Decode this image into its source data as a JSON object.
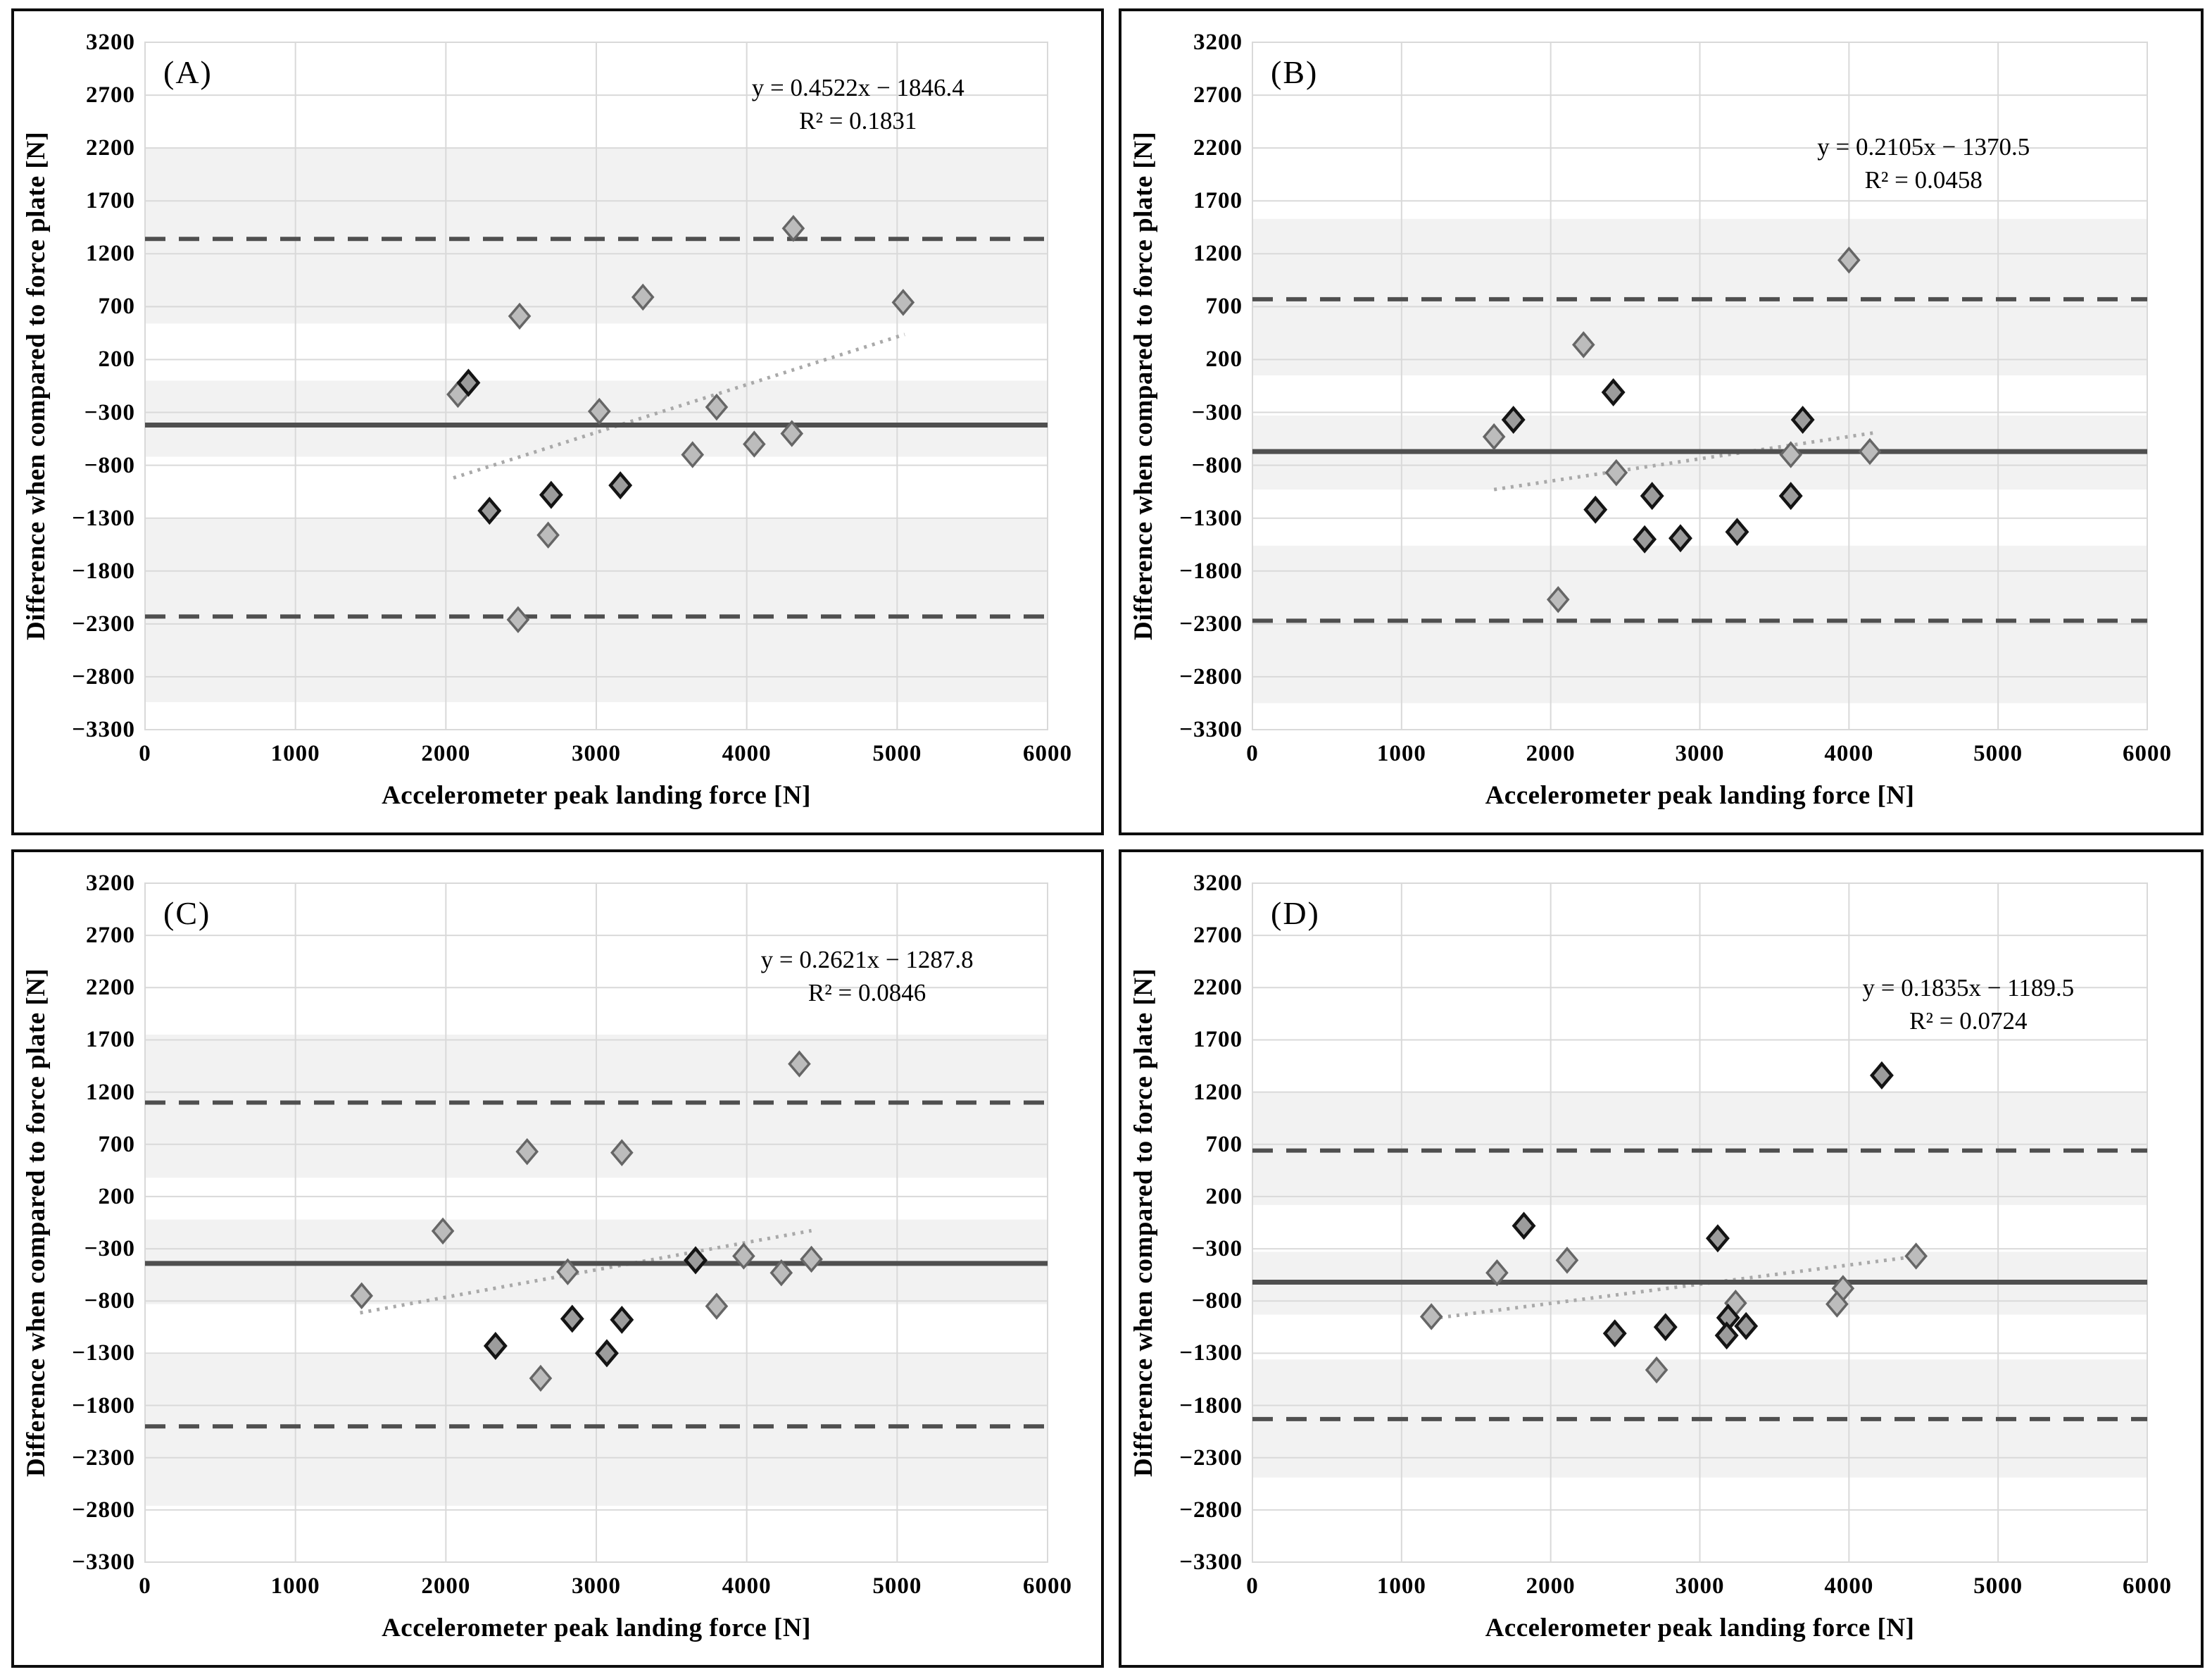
{
  "figure": {
    "description": "Four Bland-Altman style scatter plots comparing accelerometer peak landing force to force plate",
    "panel_labels": [
      "(A)",
      "(B)",
      "(C)",
      "(D)"
    ]
  },
  "axes": {
    "x_title": "Accelerometer peak landing force [N]",
    "y_title": "Difference when compared to force plate [N]",
    "x_range": [
      0,
      6000
    ],
    "y_range": [
      -3300,
      3200
    ],
    "grid": true,
    "x_ticks": [
      {
        "v": 0,
        "label": "0"
      },
      {
        "v": 1000,
        "label": "1000"
      },
      {
        "v": 2000,
        "label": "2000"
      },
      {
        "v": 3000,
        "label": "3000"
      },
      {
        "v": 4000,
        "label": "4000"
      },
      {
        "v": 5000,
        "label": "5000"
      },
      {
        "v": 6000,
        "label": "6000"
      }
    ],
    "y_ticks": [
      {
        "v": 3200,
        "label": "3200"
      },
      {
        "v": 2700,
        "label": "2700"
      },
      {
        "v": 2200,
        "label": "2200"
      },
      {
        "v": 1700,
        "label": "1700"
      },
      {
        "v": 1200,
        "label": "1200"
      },
      {
        "v": 700,
        "label": "700"
      },
      {
        "v": 200,
        "label": "200"
      },
      {
        "v": -300,
        "label": "−300"
      },
      {
        "v": -800,
        "label": "−800"
      },
      {
        "v": -1300,
        "label": "−1300"
      },
      {
        "v": -1800,
        "label": "−1800"
      },
      {
        "v": -2300,
        "label": "−2300"
      },
      {
        "v": -2800,
        "label": "−2800"
      },
      {
        "v": -3300,
        "label": "−3300"
      }
    ]
  },
  "colors": {
    "band": "#f2f2f2",
    "grid": "#d9d9d9",
    "ref_line": "#4f4f4f",
    "trend": "#a9a9a9",
    "marker_light_fill": "#bcbcbc",
    "marker_light_stroke": "#666666",
    "marker_dark_fill": "#9c9c9c",
    "marker_dark_stroke": "#141414",
    "panel_border": "#0d0d0d"
  },
  "chart_data": [
    {
      "type": "scatter",
      "panel_label": "(A)",
      "equation": "y = 0.4522x − 1846.4",
      "r_squared": "R² = 0.1831",
      "fit": {
        "slope": 0.4522,
        "intercept": -1846.4,
        "x_start": 2050,
        "x_end": 5050
      },
      "mean_line": -420,
      "upper_loa": 1340,
      "lower_loa": -2230,
      "shaded_bands": [
        [
          2200,
          540
        ],
        [
          0,
          -720
        ],
        [
          -1310,
          -3040
        ]
      ],
      "eq_pos": {
        "fx": 0.79,
        "fy": 0.042
      },
      "points": [
        [
          2080,
          -130,
          "light"
        ],
        [
          2150,
          -20,
          "dark"
        ],
        [
          2490,
          610,
          "light"
        ],
        [
          3310,
          790,
          "light"
        ],
        [
          4310,
          1440,
          "light"
        ],
        [
          5040,
          740,
          "light"
        ],
        [
          3020,
          -290,
          "light"
        ],
        [
          3800,
          -250,
          "light"
        ],
        [
          4050,
          -600,
          "light"
        ],
        [
          4300,
          -500,
          "light"
        ],
        [
          3640,
          -700,
          "light"
        ],
        [
          3160,
          -990,
          "dark"
        ],
        [
          2700,
          -1080,
          "dark"
        ],
        [
          2290,
          -1230,
          "dark"
        ],
        [
          2680,
          -1460,
          "light"
        ],
        [
          2480,
          -2260,
          "light"
        ]
      ]
    },
    {
      "type": "scatter",
      "panel_label": "(B)",
      "equation": "y = 0.2105x − 1370.5",
      "r_squared": "R² = 0.0458",
      "fit": {
        "slope": 0.2105,
        "intercept": -1370.5,
        "x_start": 1620,
        "x_end": 4170
      },
      "mean_line": -670,
      "upper_loa": 770,
      "lower_loa": -2270,
      "shaded_bands": [
        [
          1530,
          50
        ],
        [
          -330,
          -1030
        ],
        [
          -1560,
          -3050
        ]
      ],
      "eq_pos": {
        "fx": 0.75,
        "fy": 0.128
      },
      "points": [
        [
          4000,
          1140,
          "light"
        ],
        [
          2220,
          340,
          "light"
        ],
        [
          2420,
          -110,
          "dark"
        ],
        [
          1750,
          -370,
          "dark"
        ],
        [
          1620,
          -530,
          "light"
        ],
        [
          3690,
          -370,
          "dark"
        ],
        [
          3610,
          -700,
          "light"
        ],
        [
          4140,
          -670,
          "light"
        ],
        [
          2440,
          -870,
          "light"
        ],
        [
          2680,
          -1090,
          "dark"
        ],
        [
          3610,
          -1090,
          "dark"
        ],
        [
          2300,
          -1220,
          "dark"
        ],
        [
          3250,
          -1430,
          "dark"
        ],
        [
          2870,
          -1490,
          "dark"
        ],
        [
          2630,
          -1500,
          "dark"
        ],
        [
          2050,
          -2070,
          "light"
        ]
      ]
    },
    {
      "type": "scatter",
      "panel_label": "(C)",
      "equation": "y = 0.2621x − 1287.8",
      "r_squared": "R² = 0.0846",
      "fit": {
        "slope": 0.2621,
        "intercept": -1287.8,
        "x_start": 1430,
        "x_end": 4430
      },
      "mean_line": -440,
      "upper_loa": 1100,
      "lower_loa": -2000,
      "shaded_bands": [
        [
          1750,
          380
        ],
        [
          -20,
          -830
        ],
        [
          -1310,
          -2760
        ]
      ],
      "eq_pos": {
        "fx": 0.8,
        "fy": 0.088
      },
      "points": [
        [
          4350,
          1470,
          "light"
        ],
        [
          2540,
          630,
          "light"
        ],
        [
          3170,
          620,
          "light"
        ],
        [
          1980,
          -130,
          "light"
        ],
        [
          2810,
          -520,
          "light"
        ],
        [
          3660,
          -410,
          "dark"
        ],
        [
          3980,
          -370,
          "light"
        ],
        [
          4230,
          -530,
          "light"
        ],
        [
          4430,
          -400,
          "light"
        ],
        [
          1440,
          -750,
          "light"
        ],
        [
          3800,
          -850,
          "light"
        ],
        [
          2840,
          -970,
          "dark"
        ],
        [
          3170,
          -980,
          "dark"
        ],
        [
          2330,
          -1230,
          "dark"
        ],
        [
          3070,
          -1300,
          "dark"
        ],
        [
          2630,
          -1540,
          "light"
        ]
      ]
    },
    {
      "type": "scatter",
      "panel_label": "(D)",
      "equation": "y = 0.1835x − 1189.5",
      "r_squared": "R² = 0.0724",
      "fit": {
        "slope": 0.1835,
        "intercept": -1189.5,
        "x_start": 1200,
        "x_end": 4470
      },
      "mean_line": -620,
      "upper_loa": 640,
      "lower_loa": -1930,
      "shaded_bands": [
        [
          1200,
          120
        ],
        [
          -330,
          -930
        ],
        [
          -1360,
          -2490
        ]
      ],
      "eq_pos": {
        "fx": 0.8,
        "fy": 0.13
      },
      "points": [
        [
          4220,
          1360,
          "dark"
        ],
        [
          1820,
          -80,
          "dark"
        ],
        [
          3120,
          -200,
          "dark"
        ],
        [
          4450,
          -370,
          "light"
        ],
        [
          2110,
          -410,
          "light"
        ],
        [
          1640,
          -530,
          "light"
        ],
        [
          3960,
          -680,
          "light"
        ],
        [
          3240,
          -820,
          "light"
        ],
        [
          3920,
          -830,
          "light"
        ],
        [
          1200,
          -950,
          "light"
        ],
        [
          3190,
          -960,
          "dark"
        ],
        [
          3310,
          -1040,
          "dark"
        ],
        [
          2770,
          -1050,
          "dark"
        ],
        [
          2430,
          -1110,
          "dark"
        ],
        [
          3180,
          -1130,
          "dark"
        ],
        [
          2710,
          -1460,
          "light"
        ]
      ]
    }
  ]
}
